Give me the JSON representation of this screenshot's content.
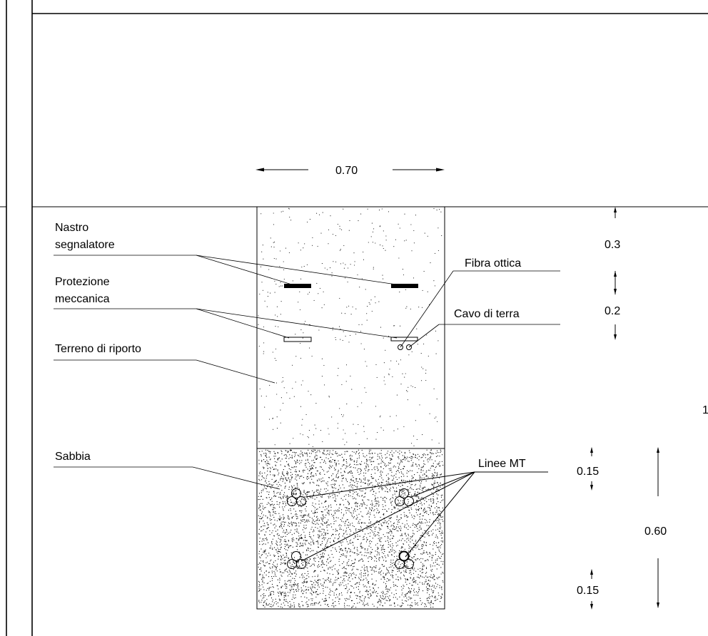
{
  "dimensions": {
    "trench_width": "0.70",
    "top_layer": "0.3",
    "protection_layer": "0.2",
    "total_depth_partial": "1",
    "sand_upper": "0.15",
    "sand_total": "0.60",
    "sand_lower": "0.15"
  },
  "labels": {
    "nastro_line1": "Nastro",
    "nastro_line2": "segnalatore",
    "protezione_line1": "Protezione",
    "protezione_line2": "meccanica",
    "terreno": "Terreno di riporto",
    "sabbia": "Sabbia",
    "fibra": "Fibra ottica",
    "cavo": "Cavo di terra",
    "linee": "Linee MT"
  },
  "colors": {
    "line": "#000000",
    "background": "#ffffff"
  }
}
